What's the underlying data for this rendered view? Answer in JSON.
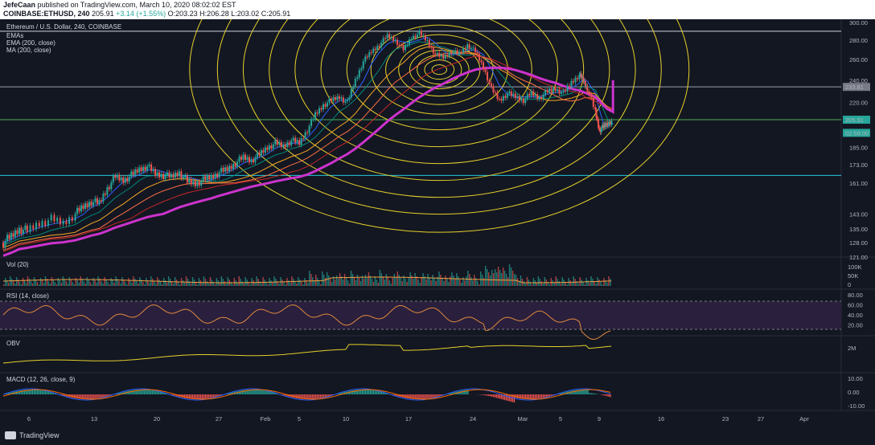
{
  "header": {
    "author": "JefeCaan",
    "published": "published on TradingView.com, March 10, 2020 08:02:02 EST",
    "symbol": "COINBASE:ETHUSD, 240",
    "price": "205.91",
    "change": "+3.14 (+1.55%)",
    "ohlc": "O:203.23 H:206.28 L:203.02 C:205.91"
  },
  "footer": {
    "brand": "TradingView"
  },
  "colors": {
    "background": "#131722",
    "up": "#26a69a",
    "down": "#ef5350",
    "ma200": "#cc33cc",
    "fib": "#e6d02a",
    "rsi_band": "#2a1f3d",
    "volume_ma": "#f0a040"
  },
  "chart_data": {
    "type": "candlestick",
    "title": "Ethereum / U.S. Dollar, 240, COINBASE",
    "legend": [
      "EMAs",
      "EMA (200, close)",
      "MA (200, close)"
    ],
    "y_ticks": [
      "300.00",
      "280.00",
      "260.00",
      "240.00",
      "220.00",
      "205.91",
      "185.00",
      "173.00",
      "161.00",
      "143.00",
      "135.00",
      "128.00",
      "121.00"
    ],
    "y_log": true,
    "ylim": [
      121,
      300
    ],
    "x_ticks": [
      "6",
      "13",
      "20",
      "27",
      "Feb",
      "5",
      "10",
      "17",
      "24",
      "Mar",
      "5",
      "9",
      "16",
      "23",
      "27",
      "Apr"
    ],
    "price_badges": [
      {
        "label": "233.81",
        "value": 233.81
      },
      {
        "label": "205.91",
        "value": 205.91
      },
      {
        "label": "02:58:00",
        "value": 200
      }
    ],
    "horizontal_lines": [
      290,
      233.8,
      205.9,
      166
    ],
    "price_path": [
      [
        0,
        128
      ],
      [
        10,
        131
      ],
      [
        20,
        135
      ],
      [
        30,
        134
      ],
      [
        45,
        138
      ],
      [
        60,
        140
      ],
      [
        75,
        138
      ],
      [
        90,
        143
      ],
      [
        100,
        147
      ],
      [
        110,
        150
      ],
      [
        120,
        149
      ],
      [
        130,
        158
      ],
      [
        140,
        165
      ],
      [
        150,
        163
      ],
      [
        160,
        166
      ],
      [
        170,
        170
      ],
      [
        180,
        172
      ],
      [
        190,
        167
      ],
      [
        200,
        166
      ],
      [
        210,
        165
      ],
      [
        220,
        168
      ],
      [
        230,
        162
      ],
      [
        240,
        161
      ],
      [
        250,
        163
      ],
      [
        260,
        165
      ],
      [
        270,
        168
      ],
      [
        280,
        170
      ],
      [
        290,
        174
      ],
      [
        300,
        178
      ],
      [
        310,
        176
      ],
      [
        320,
        180
      ],
      [
        330,
        185
      ],
      [
        340,
        188
      ],
      [
        350,
        186
      ],
      [
        360,
        190
      ],
      [
        370,
        188
      ],
      [
        380,
        198
      ],
      [
        390,
        210
      ],
      [
        400,
        218
      ],
      [
        410,
        222
      ],
      [
        420,
        225
      ],
      [
        430,
        220
      ],
      [
        440,
        240
      ],
      [
        450,
        258
      ],
      [
        460,
        268
      ],
      [
        470,
        275
      ],
      [
        480,
        285
      ],
      [
        490,
        280
      ],
      [
        500,
        270
      ],
      [
        510,
        283
      ],
      [
        520,
        288
      ],
      [
        530,
        279
      ],
      [
        540,
        265
      ],
      [
        550,
        262
      ],
      [
        560,
        268
      ],
      [
        570,
        266
      ],
      [
        580,
        275
      ],
      [
        590,
        268
      ],
      [
        600,
        252
      ],
      [
        610,
        232
      ],
      [
        620,
        222
      ],
      [
        630,
        228
      ],
      [
        640,
        225
      ],
      [
        650,
        222
      ],
      [
        660,
        228
      ],
      [
        670,
        224
      ],
      [
        680,
        230
      ],
      [
        690,
        232
      ],
      [
        700,
        228
      ],
      [
        710,
        238
      ],
      [
        720,
        245
      ],
      [
        725,
        240
      ],
      [
        730,
        232
      ],
      [
        740,
        212
      ],
      [
        745,
        198
      ],
      [
        750,
        200
      ],
      [
        755,
        203
      ],
      [
        762,
        206
      ]
    ],
    "panels": [
      {
        "name": "Vol (20)",
        "y_ticks": [
          "100K",
          "50K",
          "0"
        ]
      },
      {
        "name": "RSI (14, close)",
        "y_ticks": [
          "80.00",
          "60.00",
          "40.00",
          "20.00"
        ],
        "band": [
          30,
          70
        ]
      },
      {
        "name": "OBV",
        "y_ticks": [
          "2M"
        ]
      },
      {
        "name": "MACD (12, 26, close, 9)",
        "y_ticks": [
          "10.00",
          "0.00",
          "-10.00"
        ]
      }
    ]
  }
}
